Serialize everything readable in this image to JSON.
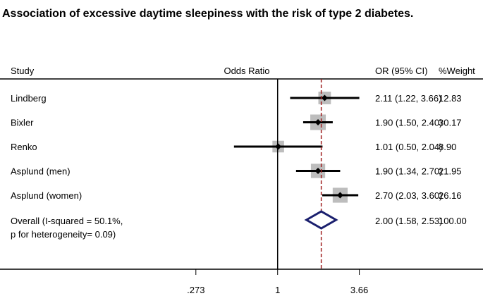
{
  "chart_data": {
    "type": "forest",
    "title": "Association of excessive daytime sleepiness with the risk of type 2 diabetes.",
    "headers": {
      "study": "Study",
      "effect": "Odds Ratio",
      "ci": "OR (95% CI)",
      "weight": "%Weight"
    },
    "scale": "log",
    "null_value": 1,
    "overall_line_value": 2.0,
    "xlim": [
      0.2,
      4.6
    ],
    "ticks": [
      {
        "value": 0.273,
        "label": ".273"
      },
      {
        "value": 1,
        "label": "1"
      },
      {
        "value": 3.66,
        "label": "3.66"
      }
    ],
    "studies": [
      {
        "name": "Lindberg",
        "or": 2.11,
        "lower": 1.22,
        "upper": 3.66,
        "ci_text": "2.11 (1.22, 3.66)",
        "weight": 12.83,
        "weight_text": "12.83"
      },
      {
        "name": "Bixler",
        "or": 1.9,
        "lower": 1.5,
        "upper": 2.4,
        "ci_text": "1.90 (1.50, 2.40)",
        "weight": 30.17,
        "weight_text": "30.17"
      },
      {
        "name": "Renko",
        "or": 1.01,
        "lower": 0.5,
        "upper": 2.04,
        "ci_text": "1.01 (0.50, 2.04)",
        "weight": 8.9,
        "weight_text": "8.90"
      },
      {
        "name": "Asplund (men)",
        "or": 1.9,
        "lower": 1.34,
        "upper": 2.7,
        "ci_text": "1.90 (1.34, 2.70)",
        "weight": 21.95,
        "weight_text": "21.95"
      },
      {
        "name": "Asplund (women)",
        "or": 2.7,
        "lower": 2.03,
        "upper": 3.6,
        "ci_text": "2.70 (2.03, 3.60)",
        "weight": 26.16,
        "weight_text": "26.16"
      }
    ],
    "overall": {
      "name_line1": "Overall  (I-squared = 50.1%,",
      "name_line2": "p for heterogeneity= 0.09)",
      "or": 2.0,
      "lower": 1.58,
      "upper": 2.53,
      "ci_text": "2.00 (1.58, 2.53)",
      "weight_text": "100.00"
    },
    "colors": {
      "marker_box": "#bdbdbd",
      "diamond": "#1a1f6e",
      "overall_line": "#a01f1f",
      "text": "#000000"
    }
  }
}
